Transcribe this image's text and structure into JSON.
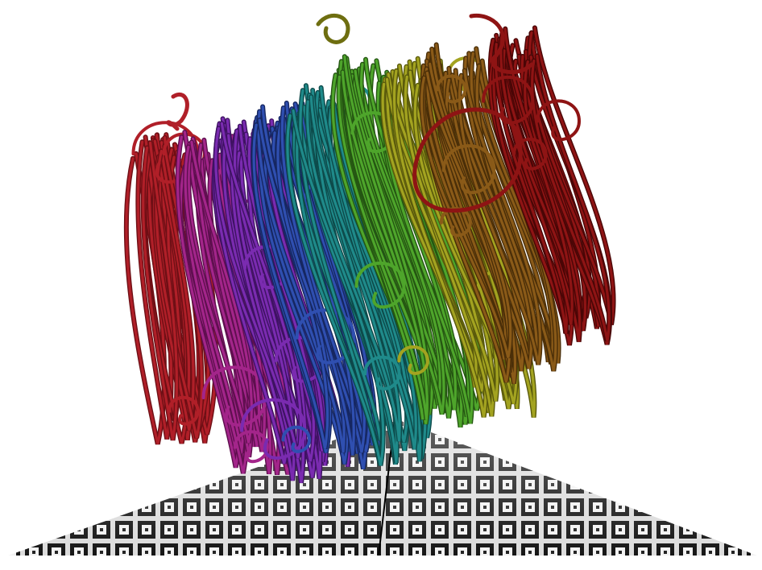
{
  "scene": {
    "description_colors": {
      "background": "#ffffff",
      "floor_light": "#e6e6e6",
      "floor_dark": "#111111"
    },
    "bundles": [
      {
        "name": "red-left",
        "color": "#b01f28",
        "dark": "#6e0f15"
      },
      {
        "name": "magenta",
        "color": "#a3258a",
        "dark": "#5e0f4e"
      },
      {
        "name": "purple",
        "color": "#7a2bb0",
        "dark": "#3e1262"
      },
      {
        "name": "blue",
        "color": "#2f4fb0",
        "dark": "#162761"
      },
      {
        "name": "teal",
        "color": "#1f8a8a",
        "dark": "#0d4a4a"
      },
      {
        "name": "green",
        "color": "#4ea52b",
        "dark": "#255612"
      },
      {
        "name": "olive",
        "color": "#a3a320",
        "dark": "#5a5a0c"
      },
      {
        "name": "brown",
        "color": "#8a5a18",
        "dark": "#4a2e08"
      },
      {
        "name": "dark-red",
        "color": "#8e1414",
        "dark": "#4a0606"
      }
    ]
  }
}
